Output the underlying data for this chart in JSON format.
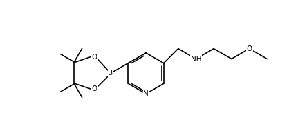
{
  "bg_color": "#ffffff",
  "line_color": "#000000",
  "figsize": [
    4.18,
    1.8
  ],
  "dpi": 100,
  "lw": 1.2,
  "fs": 7.0,
  "xlim": [
    0,
    10
  ],
  "ylim": [
    0,
    4.3
  ]
}
